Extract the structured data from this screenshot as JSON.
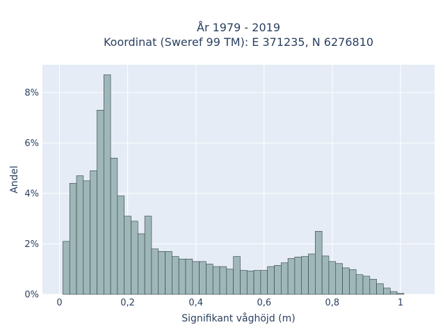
{
  "chart_data": {
    "type": "bar",
    "title_lines": [
      "År 1979 - 2019",
      "Koordinat (Sweref 99 TM): E 371235, N 6276810"
    ],
    "xlabel": "Signifikant våghöjd (m)",
    "ylabel": "Andel",
    "xlim": [
      -0.05,
      1.1
    ],
    "ylim": [
      0,
      0.091
    ],
    "xticks": [
      0,
      0.2,
      0.4,
      0.6,
      0.8,
      1
    ],
    "xtick_labels": [
      "0",
      "0,2",
      "0,4",
      "0,6",
      "0,8",
      "1"
    ],
    "yticks": [
      0,
      0.02,
      0.04,
      0.06,
      0.08
    ],
    "ytick_labels": [
      "0%",
      "2%",
      "4%",
      "6%",
      "8%"
    ],
    "bin_width": 0.02,
    "bin_starts": [
      0.01,
      0.03,
      0.05,
      0.07,
      0.09,
      0.11,
      0.13,
      0.15,
      0.17,
      0.19,
      0.21,
      0.23,
      0.25,
      0.27,
      0.29,
      0.31,
      0.33,
      0.35,
      0.37,
      0.39,
      0.41,
      0.43,
      0.45,
      0.47,
      0.49,
      0.51,
      0.53,
      0.55,
      0.57,
      0.59,
      0.61,
      0.63,
      0.65,
      0.67,
      0.69,
      0.71,
      0.73,
      0.75,
      0.77,
      0.79,
      0.81,
      0.83,
      0.85,
      0.87,
      0.89,
      0.91,
      0.93,
      0.95,
      0.97,
      0.99,
      1.01,
      1.03
    ],
    "values": [
      0.021,
      0.044,
      0.047,
      0.045,
      0.049,
      0.073,
      0.087,
      0.054,
      0.039,
      0.031,
      0.029,
      0.024,
      0.031,
      0.018,
      0.017,
      0.017,
      0.015,
      0.014,
      0.014,
      0.013,
      0.013,
      0.012,
      0.011,
      0.011,
      0.01,
      0.015,
      0.0095,
      0.0093,
      0.0095,
      0.0095,
      0.011,
      0.0115,
      0.0125,
      0.0142,
      0.0148,
      0.015,
      0.016,
      0.025,
      0.0152,
      0.013,
      0.0122,
      0.0105,
      0.0098,
      0.0078,
      0.0072,
      0.006,
      0.0042,
      0.0025,
      0.0011,
      0.0004,
      0,
      0
    ],
    "grid": true,
    "colors": {
      "plot_bg": "#e5ecf6",
      "grid": "#ffffff",
      "bar_fill": "#9fb7b8",
      "bar_stroke": "#2f3f40"
    }
  }
}
